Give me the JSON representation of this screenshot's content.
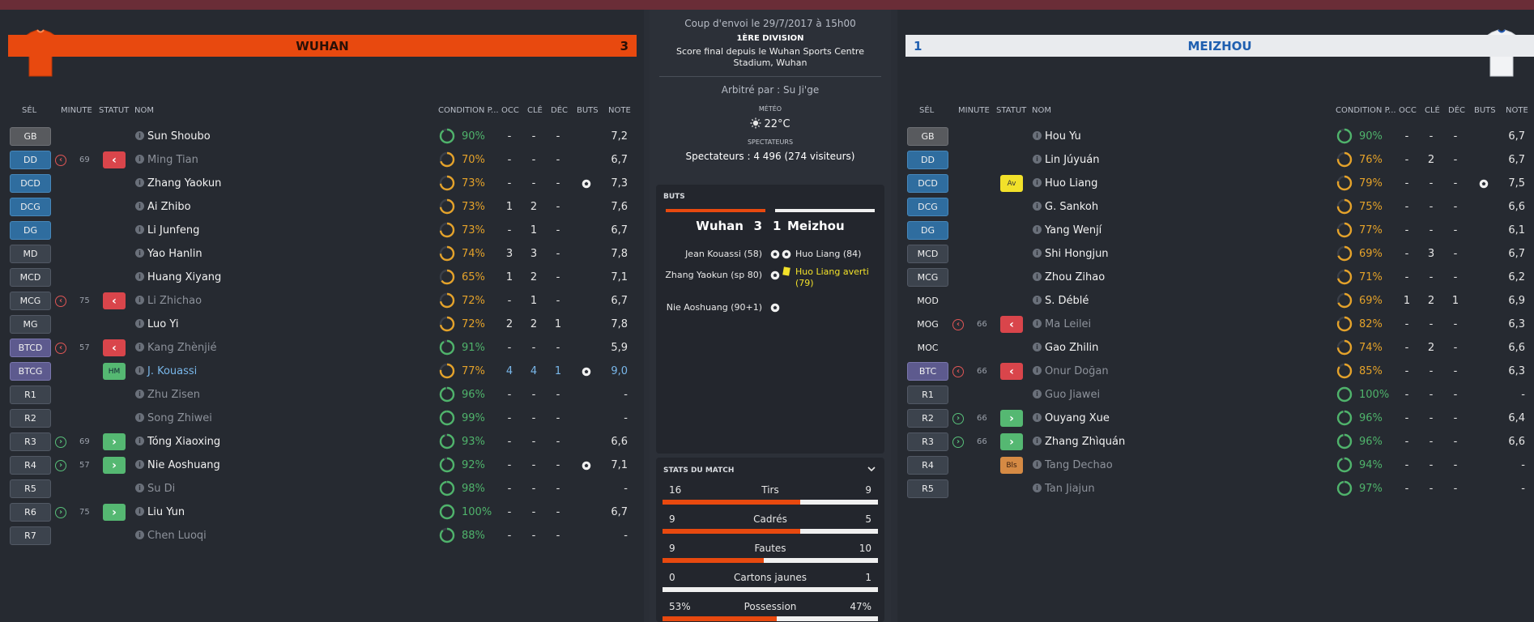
{
  "home": {
    "name": "WUHAN",
    "score": "3",
    "color": "#e8490f",
    "headers": {
      "sel": "SÉL",
      "minute": "MINUTE",
      "statut": "STATUT",
      "nom": "NOM",
      "cond": "CONDITION P...",
      "occ": "OCC",
      "cle": "CLÉ",
      "dec": "DÉC",
      "buts": "BUTS",
      "note": "NOTE"
    },
    "players": [
      {
        "pos": "GB",
        "kind": "gk",
        "sub": "",
        "minute": "",
        "status": "",
        "name": "Sun Shoubo",
        "cond": 90,
        "occ": "-",
        "cle": "-",
        "dec": "-",
        "goal": false,
        "note": "7,2"
      },
      {
        "pos": "DD",
        "kind": "def",
        "sub": "out",
        "minute": "69",
        "status": "out",
        "name": "Ming Tian",
        "dim": true,
        "cond": 70,
        "occ": "-",
        "cle": "-",
        "dec": "-",
        "goal": false,
        "note": "6,7"
      },
      {
        "pos": "DCD",
        "kind": "def",
        "sub": "",
        "minute": "",
        "status": "",
        "name": "Zhang Yaokun",
        "cond": 73,
        "occ": "-",
        "cle": "-",
        "dec": "-",
        "goal": true,
        "note": "7,3"
      },
      {
        "pos": "DCG",
        "kind": "def",
        "sub": "",
        "minute": "",
        "status": "",
        "name": "Ai Zhibo",
        "cond": 73,
        "occ": "1",
        "cle": "2",
        "dec": "-",
        "goal": false,
        "note": "7,6"
      },
      {
        "pos": "DG",
        "kind": "def",
        "sub": "",
        "minute": "",
        "status": "",
        "name": "Li Junfeng",
        "cond": 73,
        "occ": "-",
        "cle": "1",
        "dec": "-",
        "goal": false,
        "note": "6,7"
      },
      {
        "pos": "MD",
        "kind": "mid",
        "sub": "",
        "minute": "",
        "status": "",
        "name": "Yao Hanlin",
        "cond": 74,
        "occ": "3",
        "cle": "3",
        "dec": "-",
        "goal": false,
        "note": "7,8"
      },
      {
        "pos": "MCD",
        "kind": "mid",
        "sub": "",
        "minute": "",
        "status": "",
        "name": "Huang Xiyang",
        "cond": 65,
        "occ": "1",
        "cle": "2",
        "dec": "-",
        "goal": false,
        "note": "7,1"
      },
      {
        "pos": "MCG",
        "kind": "mid",
        "sub": "out",
        "minute": "75",
        "status": "out",
        "name": "Li Zhichao",
        "dim": true,
        "cond": 72,
        "occ": "-",
        "cle": "1",
        "dec": "-",
        "goal": false,
        "note": "6,7"
      },
      {
        "pos": "MG",
        "kind": "mid",
        "sub": "",
        "minute": "",
        "status": "",
        "name": "Luo Yi",
        "cond": 72,
        "occ": "2",
        "cle": "2",
        "dec": "1",
        "goal": false,
        "note": "7,8"
      },
      {
        "pos": "BTCD",
        "kind": "att",
        "sub": "out",
        "minute": "57",
        "status": "out",
        "name": "Kang Zhènjié",
        "dim": true,
        "cond": 91,
        "occ": "-",
        "cle": "-",
        "dec": "-",
        "goal": false,
        "note": "5,9"
      },
      {
        "pos": "BTCG",
        "kind": "att",
        "sub": "",
        "minute": "",
        "status": "hm",
        "status_label": "HM",
        "name": "J. Kouassi",
        "star": true,
        "cond": 77,
        "occ": "4",
        "cle": "4",
        "dec": "1",
        "goal": true,
        "note": "9,0"
      },
      {
        "pos": "R1",
        "kind": "res",
        "sub": "",
        "minute": "",
        "status": "",
        "name": "Zhu Zisen",
        "dim": true,
        "cond": 96,
        "occ": "-",
        "cle": "-",
        "dec": "-",
        "goal": false,
        "note": "-"
      },
      {
        "pos": "R2",
        "kind": "res",
        "sub": "",
        "minute": "",
        "status": "",
        "name": "Song Zhiwei",
        "dim": true,
        "cond": 99,
        "occ": "-",
        "cle": "-",
        "dec": "-",
        "goal": false,
        "note": "-"
      },
      {
        "pos": "R3",
        "kind": "res",
        "sub": "in",
        "minute": "69",
        "status": "in",
        "name": "Tóng Xiaoxing",
        "cond": 93,
        "occ": "-",
        "cle": "-",
        "dec": "-",
        "goal": false,
        "note": "6,6"
      },
      {
        "pos": "R4",
        "kind": "res",
        "sub": "in",
        "minute": "57",
        "status": "in",
        "name": "Nie Aoshuang",
        "cond": 92,
        "occ": "-",
        "cle": "-",
        "dec": "-",
        "goal": true,
        "note": "7,1"
      },
      {
        "pos": "R5",
        "kind": "res",
        "sub": "",
        "minute": "",
        "status": "",
        "name": "Su Di",
        "dim": true,
        "cond": 98,
        "occ": "-",
        "cle": "-",
        "dec": "-",
        "goal": false,
        "note": "-"
      },
      {
        "pos": "R6",
        "kind": "res",
        "sub": "in",
        "minute": "75",
        "status": "in",
        "name": "Liu Yun",
        "cond": 100,
        "occ": "-",
        "cle": "-",
        "dec": "-",
        "goal": false,
        "note": "6,7"
      },
      {
        "pos": "R7",
        "kind": "res",
        "sub": "",
        "minute": "",
        "status": "",
        "name": "Chen Luoqi",
        "dim": true,
        "cond": 88,
        "occ": "-",
        "cle": "-",
        "dec": "-",
        "goal": false,
        "note": "-"
      }
    ]
  },
  "away": {
    "name": "MEIZHOU",
    "score": "1",
    "color": "#1f5fb0",
    "headers": {
      "sel": "SÉL",
      "minute": "MINUTE",
      "statut": "STATUT",
      "nom": "NOM",
      "cond": "CONDITION P...",
      "occ": "OCC",
      "cle": "CLÉ",
      "dec": "DÉC",
      "buts": "BUTS",
      "note": "NOTE"
    },
    "players": [
      {
        "pos": "GB",
        "kind": "gk",
        "sub": "",
        "minute": "",
        "status": "",
        "name": "Hou Yu",
        "cond": 90,
        "occ": "-",
        "cle": "-",
        "dec": "-",
        "goal": false,
        "note": "6,7"
      },
      {
        "pos": "DD",
        "kind": "def",
        "sub": "",
        "minute": "",
        "status": "",
        "name": "Lin Júyuán",
        "cond": 76,
        "occ": "-",
        "cle": "2",
        "dec": "-",
        "goal": false,
        "note": "6,7"
      },
      {
        "pos": "DCD",
        "kind": "def",
        "sub": "",
        "minute": "",
        "status": "av",
        "status_label": "Av",
        "name": "Huo Liang",
        "cond": 79,
        "occ": "-",
        "cle": "-",
        "dec": "-",
        "goal": true,
        "note": "7,5"
      },
      {
        "pos": "DCG",
        "kind": "def",
        "sub": "",
        "minute": "",
        "status": "",
        "name": "G. Sankoh",
        "cond": 75,
        "occ": "-",
        "cle": "-",
        "dec": "-",
        "goal": false,
        "note": "6,6"
      },
      {
        "pos": "DG",
        "kind": "def",
        "sub": "",
        "minute": "",
        "status": "",
        "name": "Yang Wenjí",
        "cond": 77,
        "occ": "-",
        "cle": "-",
        "dec": "-",
        "goal": false,
        "note": "6,1"
      },
      {
        "pos": "MCD",
        "kind": "mid",
        "sub": "",
        "minute": "",
        "status": "",
        "name": "Shi Hongjun",
        "cond": 69,
        "occ": "-",
        "cle": "3",
        "dec": "-",
        "goal": false,
        "note": "6,7"
      },
      {
        "pos": "MCG",
        "kind": "mid",
        "sub": "",
        "minute": "",
        "status": "",
        "name": "Zhou Zihao",
        "cond": 71,
        "occ": "-",
        "cle": "-",
        "dec": "-",
        "goal": false,
        "note": "6,2"
      },
      {
        "pos": "MOD",
        "kind": "plain",
        "sub": "",
        "minute": "",
        "status": "",
        "name": "S. Déblé",
        "cond": 69,
        "occ": "1",
        "cle": "2",
        "dec": "1",
        "goal": false,
        "note": "6,9"
      },
      {
        "pos": "MOG",
        "kind": "plain",
        "sub": "out",
        "minute": "66",
        "status": "out",
        "name": "Ma Leilei",
        "dim": true,
        "cond": 82,
        "occ": "-",
        "cle": "-",
        "dec": "-",
        "goal": false,
        "note": "6,3"
      },
      {
        "pos": "MOC",
        "kind": "plain",
        "sub": "",
        "minute": "",
        "status": "",
        "name": "Gao Zhilin",
        "cond": 74,
        "occ": "-",
        "cle": "2",
        "dec": "-",
        "goal": false,
        "note": "6,6"
      },
      {
        "pos": "BTC",
        "kind": "att",
        "sub": "out",
        "minute": "66",
        "status": "out",
        "name": "Onur Doğan",
        "dim": true,
        "cond": 85,
        "occ": "-",
        "cle": "-",
        "dec": "-",
        "goal": false,
        "note": "6,3"
      },
      {
        "pos": "R1",
        "kind": "res",
        "sub": "",
        "minute": "",
        "status": "",
        "name": "Guo Jiawei",
        "dim": true,
        "cond": 100,
        "occ": "-",
        "cle": "-",
        "dec": "-",
        "goal": false,
        "note": "-"
      },
      {
        "pos": "R2",
        "kind": "res",
        "sub": "in",
        "minute": "66",
        "status": "in",
        "name": "Ouyang Xue",
        "cond": 96,
        "occ": "-",
        "cle": "-",
        "dec": "-",
        "goal": false,
        "note": "6,4"
      },
      {
        "pos": "R3",
        "kind": "res",
        "sub": "in",
        "minute": "66",
        "status": "in",
        "name": "Zhang Zhìquán",
        "cond": 96,
        "occ": "-",
        "cle": "-",
        "dec": "-",
        "goal": false,
        "note": "6,6"
      },
      {
        "pos": "R4",
        "kind": "res",
        "sub": "",
        "minute": "",
        "status": "bls",
        "status_label": "Bls",
        "name": "Tang Dechao",
        "dim": true,
        "cond": 94,
        "occ": "-",
        "cle": "-",
        "dec": "-",
        "goal": false,
        "note": "-"
      },
      {
        "pos": "R5",
        "kind": "res",
        "sub": "",
        "minute": "",
        "status": "",
        "name": "Tan Jiajun",
        "dim": true,
        "cond": 97,
        "occ": "-",
        "cle": "-",
        "dec": "-",
        "goal": false,
        "note": "-"
      }
    ]
  },
  "center": {
    "kickoff": "Coup d'envoi le 29/7/2017 à 15h00",
    "division": "1ÈRE DIVISION",
    "final_score": "Score final depuis le Wuhan Sports Centre Stadium, Wuhan",
    "referee": "Arbitré par : Su Ji'ge",
    "meteo_label": "MÉTÉO",
    "meteo": "22°C",
    "spect_label": "SPECTATEURS",
    "spectators": "Spectateurs : 4 496 (274 visiteurs)"
  },
  "goals": {
    "title": "BUTS",
    "home_name": "Wuhan",
    "home_score": "3",
    "away_score": "1",
    "away_name": "Meizhou",
    "home_events": [
      "Jean Kouassi (58)",
      "Zhang Yaokun (sp 80)",
      "Nie Aoshuang (90+1)"
    ],
    "away_events": [
      {
        "text": "Huo Liang (84)",
        "type": "goal"
      },
      {
        "text": "Huo Liang averti (79)",
        "type": "yellow"
      }
    ]
  },
  "stats": {
    "title": "STATS DU MATCH",
    "rows": [
      {
        "label": "Tirs",
        "home": "16",
        "away": "9",
        "share": 0.64
      },
      {
        "label": "Cadrés",
        "home": "9",
        "away": "5",
        "share": 0.64
      },
      {
        "label": "Fautes",
        "home": "9",
        "away": "10",
        "share": 0.47
      },
      {
        "label": "Cartons jaunes",
        "home": "0",
        "away": "1",
        "share": 0.0
      },
      {
        "label": "Possession",
        "home": "53%",
        "away": "47%",
        "share": 0.53
      }
    ]
  }
}
